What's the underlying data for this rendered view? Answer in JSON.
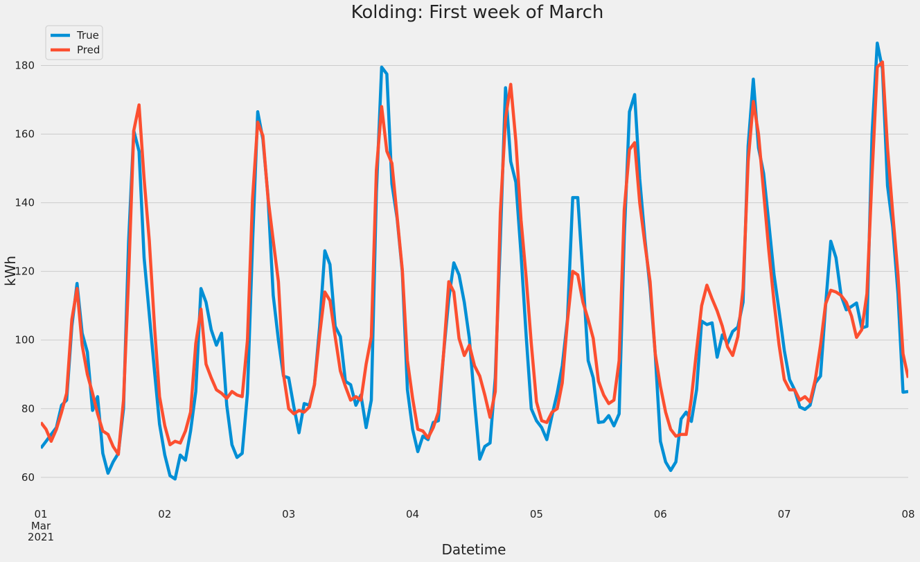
{
  "chart_data": {
    "type": "line",
    "title": "Kolding: First week of March",
    "xlabel": "Datetime",
    "ylabel": "kWh",
    "ylim": [
      52.5,
      192
    ],
    "yticks": [
      60,
      80,
      100,
      120,
      140,
      160,
      180
    ],
    "xlim": [
      0,
      7
    ],
    "xticks": [
      {
        "x": 0,
        "label": "01",
        "sub": [
          "Mar",
          "2021"
        ]
      },
      {
        "x": 1,
        "label": "02"
      },
      {
        "x": 2,
        "label": "03"
      },
      {
        "x": 3,
        "label": "04"
      },
      {
        "x": 4,
        "label": "05"
      },
      {
        "x": 5,
        "label": "06"
      },
      {
        "x": 6,
        "label": "07"
      },
      {
        "x": 7,
        "label": "08"
      }
    ],
    "grid": true,
    "legend_position": "top-left",
    "series": [
      {
        "name": "True",
        "color": "#008fd5",
        "x": [
          0,
          0.042,
          0.083,
          0.125,
          0.167,
          0.208,
          0.25,
          0.292,
          0.333,
          0.375,
          0.417,
          0.458,
          0.5,
          0.542,
          0.583,
          0.625,
          0.667,
          0.708,
          0.75,
          0.792,
          0.833,
          0.875,
          0.917,
          0.958,
          1,
          1.042,
          1.083,
          1.125,
          1.167,
          1.208,
          1.25,
          1.292,
          1.333,
          1.375,
          1.417,
          1.458,
          1.5,
          1.542,
          1.583,
          1.625,
          1.667,
          1.708,
          1.75,
          1.792,
          1.833,
          1.875,
          1.917,
          1.958,
          2,
          2.042,
          2.083,
          2.125,
          2.167,
          2.208,
          2.25,
          2.292,
          2.333,
          2.375,
          2.417,
          2.458,
          2.5,
          2.542,
          2.583,
          2.625,
          2.667,
          2.708,
          2.75,
          2.792,
          2.833,
          2.875,
          2.917,
          2.958,
          3,
          3.042,
          3.083,
          3.125,
          3.167,
          3.208,
          3.25,
          3.292,
          3.333,
          3.375,
          3.417,
          3.458,
          3.5,
          3.542,
          3.583,
          3.625,
          3.667,
          3.708,
          3.75,
          3.792,
          3.833,
          3.875,
          3.917,
          3.958,
          4,
          4.042,
          4.083,
          4.125,
          4.167,
          4.208,
          4.25,
          4.292,
          4.333,
          4.375,
          4.417,
          4.458,
          4.5,
          4.542,
          4.583,
          4.625,
          4.667,
          4.708,
          4.75,
          4.792,
          4.833,
          4.875,
          4.917,
          4.958,
          5,
          5.042,
          5.083,
          5.125,
          5.167,
          5.208,
          5.25,
          5.292,
          5.333,
          5.375,
          5.417,
          5.458,
          5.5,
          5.542,
          5.583,
          5.625,
          5.667,
          5.708,
          5.75,
          5.792,
          5.833,
          5.875,
          5.917,
          5.958,
          6,
          6.042,
          6.083,
          6.125,
          6.167,
          6.208,
          6.25,
          6.292,
          6.333,
          6.375,
          6.417,
          6.458,
          6.5,
          6.542,
          6.583,
          6.625,
          6.667,
          6.708,
          6.75,
          6.792,
          6.833,
          6.875,
          6.917,
          6.958,
          7
        ],
        "values": [
          68.5,
          70.5,
          72.5,
          74.5,
          81,
          82.5,
          104,
          116.5,
          102,
          96.5,
          79.5,
          83.5,
          67,
          61.2,
          64.5,
          67,
          80,
          128.5,
          161,
          155,
          124,
          107.5,
          91,
          75.5,
          66.5,
          60.5,
          59.5,
          66.5,
          65,
          73.5,
          85,
          115,
          111,
          103,
          98.5,
          102,
          81,
          69.5,
          65.8,
          67,
          84.5,
          128,
          166.5,
          158.5,
          142,
          113,
          100,
          89.5,
          89,
          80.5,
          73,
          81.5,
          81,
          87,
          104,
          126,
          122,
          104,
          101,
          88,
          87,
          81,
          84,
          74.5,
          82.5,
          143,
          179.5,
          177.5,
          145.5,
          135.5,
          120,
          85.5,
          74,
          67.5,
          72,
          71,
          76,
          76.5,
          96,
          112,
          122.5,
          119,
          111,
          100.5,
          82,
          65.3,
          69,
          70,
          89,
          129,
          173.5,
          152,
          146,
          125,
          101,
          80,
          76.5,
          74.5,
          71,
          78,
          84.5,
          92.5,
          106,
          141.5,
          141.5,
          118.5,
          94,
          89,
          76,
          76.2,
          78,
          75,
          78.5,
          130,
          166.5,
          171.5,
          147,
          129.5,
          115,
          96,
          70.5,
          64.5,
          62,
          64.5,
          77,
          79,
          76.3,
          85.5,
          105.5,
          104.5,
          105,
          95,
          101.5,
          99,
          102.5,
          103.8,
          111,
          156.5,
          176,
          156,
          148.5,
          134,
          119,
          108.5,
          97,
          88.5,
          85.5,
          80.5,
          79.8,
          81,
          87.5,
          89.5,
          110,
          128.8,
          124,
          113,
          108.8,
          109.8,
          110.8,
          103.5,
          104,
          160,
          186.5,
          179,
          145,
          133,
          113.5,
          84.8,
          85
        ]
      },
      {
        "name": "Pred",
        "color": "#fc4f30",
        "x": [
          0,
          0.042,
          0.083,
          0.125,
          0.167,
          0.208,
          0.25,
          0.292,
          0.333,
          0.375,
          0.417,
          0.458,
          0.5,
          0.542,
          0.583,
          0.625,
          0.667,
          0.708,
          0.75,
          0.792,
          0.833,
          0.875,
          0.917,
          0.958,
          1,
          1.042,
          1.083,
          1.125,
          1.167,
          1.208,
          1.25,
          1.292,
          1.333,
          1.375,
          1.417,
          1.458,
          1.5,
          1.542,
          1.583,
          1.625,
          1.667,
          1.708,
          1.75,
          1.792,
          1.833,
          1.875,
          1.917,
          1.958,
          2,
          2.042,
          2.083,
          2.125,
          2.167,
          2.208,
          2.25,
          2.292,
          2.333,
          2.375,
          2.417,
          2.458,
          2.5,
          2.542,
          2.583,
          2.625,
          2.667,
          2.708,
          2.75,
          2.792,
          2.833,
          2.875,
          2.917,
          2.958,
          3,
          3.042,
          3.083,
          3.125,
          3.167,
          3.208,
          3.25,
          3.292,
          3.333,
          3.375,
          3.417,
          3.458,
          3.5,
          3.542,
          3.583,
          3.625,
          3.667,
          3.708,
          3.75,
          3.792,
          3.833,
          3.875,
          3.917,
          3.958,
          4,
          4.042,
          4.083,
          4.125,
          4.167,
          4.208,
          4.25,
          4.292,
          4.333,
          4.375,
          4.417,
          4.458,
          4.5,
          4.542,
          4.583,
          4.625,
          4.667,
          4.708,
          4.75,
          4.792,
          4.833,
          4.875,
          4.917,
          4.958,
          5,
          5.042,
          5.083,
          5.125,
          5.167,
          5.208,
          5.25,
          5.292,
          5.333,
          5.375,
          5.417,
          5.458,
          5.5,
          5.542,
          5.583,
          5.625,
          5.667,
          5.708,
          5.75,
          5.792,
          5.833,
          5.875,
          5.917,
          5.958,
          6,
          6.042,
          6.083,
          6.125,
          6.167,
          6.208,
          6.25,
          6.292,
          6.333,
          6.375,
          6.417,
          6.458,
          6.5,
          6.542,
          6.583,
          6.625,
          6.667,
          6.708,
          6.75,
          6.792,
          6.833,
          6.875,
          6.917,
          6.958,
          7
        ],
        "values": [
          76,
          74,
          70.5,
          74,
          79,
          84.5,
          106,
          115,
          98.5,
          90,
          84.5,
          78.5,
          73.5,
          72.5,
          69,
          66.7,
          82.5,
          118,
          161,
          168.5,
          147,
          129,
          104,
          83.5,
          75,
          69.5,
          70.5,
          70,
          73.5,
          79,
          99,
          109,
          93,
          89,
          85.5,
          84.5,
          83,
          85,
          84,
          83.5,
          100,
          141,
          163.5,
          159.5,
          141.5,
          129,
          117,
          90,
          80,
          78.5,
          79.5,
          79,
          80.5,
          87,
          101.5,
          114,
          111.5,
          101,
          91,
          86.5,
          82.5,
          83.5,
          82.5,
          93,
          101,
          149.5,
          168,
          155,
          151.5,
          136,
          120.5,
          94,
          83,
          74,
          73.5,
          71.5,
          74.5,
          79,
          96,
          117,
          114,
          100.5,
          95.5,
          98.5,
          92.5,
          89.5,
          84,
          77.5,
          85,
          137,
          164.5,
          174.5,
          158,
          135,
          118,
          99,
          82,
          76.5,
          76,
          79,
          80,
          87.5,
          105.5,
          120,
          119,
          111,
          106,
          100.5,
          88,
          84,
          81.5,
          82.5,
          94,
          138,
          155.5,
          157.5,
          140,
          128,
          117,
          96,
          86.5,
          79,
          74,
          72,
          72.5,
          72.5,
          83,
          97,
          110,
          116,
          112,
          108.5,
          104,
          98,
          95.5,
          101,
          115,
          152,
          169.5,
          160,
          143,
          126,
          111,
          98.5,
          88.5,
          85.5,
          85.5,
          82.5,
          83.5,
          82,
          88.5,
          98.5,
          110.5,
          114.5,
          114,
          113,
          111,
          107,
          100.8,
          103,
          113.5,
          148,
          179.5,
          181,
          156,
          137,
          119,
          96,
          89
        ]
      }
    ]
  }
}
